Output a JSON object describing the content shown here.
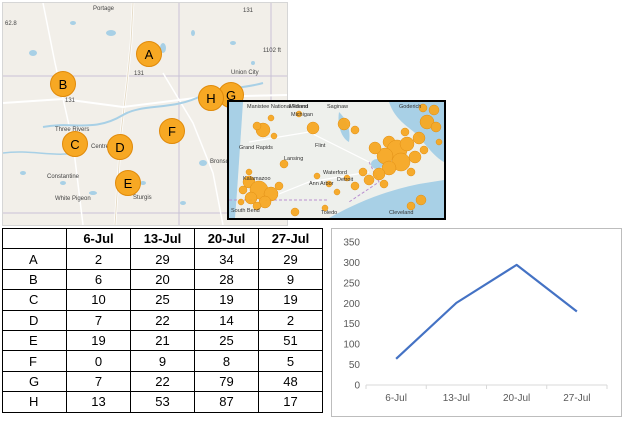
{
  "map": {
    "markers": [
      {
        "label": "A"
      },
      {
        "label": "B"
      },
      {
        "label": "C"
      },
      {
        "label": "D"
      },
      {
        "label": "E"
      },
      {
        "label": "F"
      },
      {
        "label": "G"
      },
      {
        "label": "H"
      }
    ],
    "places": [
      "Portage",
      "131",
      "62.8",
      "Union City",
      "Three Rivers",
      "Centreville",
      "Constantine",
      "White Pigeon",
      "Sturgis",
      "Bronson",
      "1102 ft",
      "131",
      "131"
    ],
    "colors": {
      "marker": "#f7a823",
      "water": "#a8d0e6",
      "land": "#f2efe9"
    }
  },
  "inset": {
    "places": [
      "Michigan",
      "Grand Rapids",
      "Lansing",
      "Flint",
      "Waterford",
      "Ann Arbor",
      "Detroit",
      "Kalamazoo",
      "Toledo",
      "Cleveland",
      "South Bend",
      "Midland",
      "Saginaw",
      "Goderich",
      "Manistee National Forest"
    ]
  },
  "table": {
    "headers": [
      "",
      "6-Jul",
      "13-Jul",
      "20-Jul",
      "27-Jul"
    ],
    "rows": [
      {
        "label": "A",
        "values": [
          "2",
          "29",
          "34",
          "29"
        ]
      },
      {
        "label": "B",
        "values": [
          "6",
          "20",
          "28",
          "9"
        ]
      },
      {
        "label": "C",
        "values": [
          "10",
          "25",
          "19",
          "19"
        ]
      },
      {
        "label": "D",
        "values": [
          "7",
          "22",
          "14",
          "2"
        ]
      },
      {
        "label": "E",
        "values": [
          "19",
          "21",
          "25",
          "51"
        ]
      },
      {
        "label": "F",
        "values": [
          "0",
          "9",
          "8",
          "5"
        ]
      },
      {
        "label": "G",
        "values": [
          "7",
          "22",
          "79",
          "48"
        ]
      },
      {
        "label": "H",
        "values": [
          "13",
          "53",
          "87",
          "17"
        ]
      }
    ]
  },
  "chart_data": {
    "type": "line",
    "categories": [
      "6-Jul",
      "13-Jul",
      "20-Jul",
      "27-Jul"
    ],
    "series": [
      {
        "values": [
          64,
          201,
          294,
          180
        ]
      }
    ],
    "ylim": [
      0,
      350
    ],
    "yticks": [
      "0",
      "50",
      "100",
      "150",
      "200",
      "250",
      "300",
      "350"
    ],
    "grid": false,
    "legend": "none",
    "line_color": "#4472c4"
  }
}
